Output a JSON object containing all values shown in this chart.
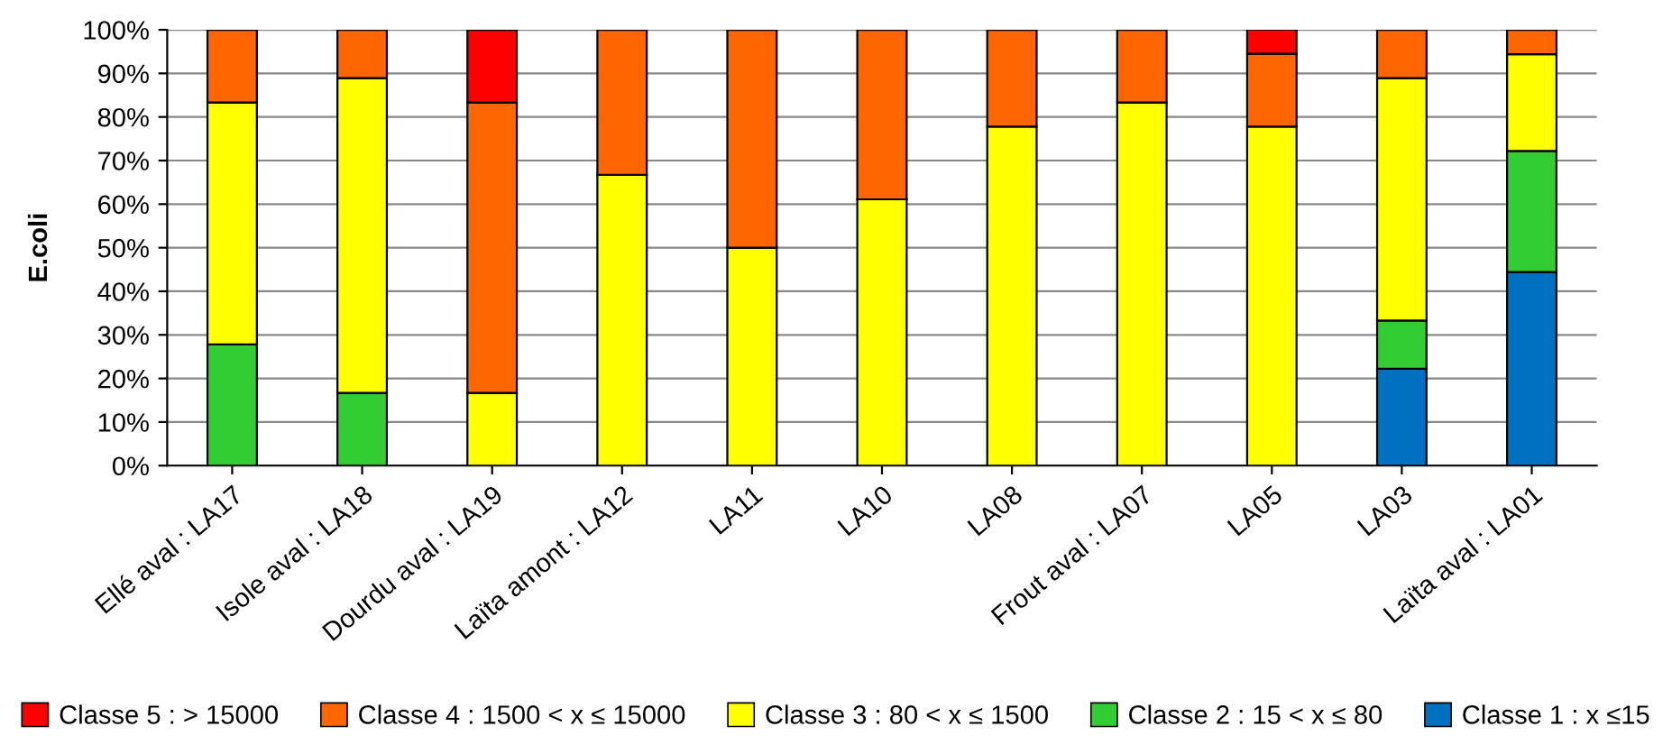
{
  "chart_data": {
    "type": "bar",
    "stacked": true,
    "ylabel": "E.coli",
    "categories": [
      "Ellé aval : LA17",
      "Isole aval : LA18",
      "Dourdu aval : LA19",
      "Laïta amont : LA12",
      "LA11",
      "LA10",
      "LA08",
      "Frout aval : LA07",
      "LA05",
      "LA03",
      "Laïta aval : LA01"
    ],
    "series": [
      {
        "name": "Classe 1 : x ≤15",
        "color": "#0070c0",
        "values": [
          0,
          0,
          0,
          0,
          0,
          0,
          0,
          0,
          0,
          22.2,
          44.4
        ]
      },
      {
        "name": "Classe 2 : 15 < x ≤ 80",
        "color": "#33cc33",
        "values": [
          27.8,
          16.7,
          0,
          0,
          0,
          0,
          0,
          0,
          0,
          11.1,
          27.8
        ]
      },
      {
        "name": "Classe 3 : 80 < x ≤ 1500",
        "color": "#ffff00",
        "values": [
          55.5,
          72.2,
          16.7,
          66.7,
          50,
          61.1,
          77.8,
          83.3,
          77.8,
          55.6,
          22.2
        ]
      },
      {
        "name": "Classe 4 : 1500 < x ≤ 15000",
        "color": "#ff6600",
        "values": [
          16.7,
          11.1,
          66.6,
          33.3,
          50,
          38.9,
          22.2,
          16.7,
          16.7,
          11.1,
          5.6
        ]
      },
      {
        "name": "Classe 5 : > 15000",
        "color": "#ff0000",
        "values": [
          0,
          0,
          16.7,
          0,
          0,
          0,
          0,
          0,
          5.6,
          0,
          0
        ]
      }
    ],
    "ylim": [
      0,
      100
    ],
    "yticks": [
      {
        "value": 0,
        "label": "0%"
      },
      {
        "value": 10,
        "label": "10%"
      },
      {
        "value": 20,
        "label": "20%"
      },
      {
        "value": 30,
        "label": "30%"
      },
      {
        "value": 40,
        "label": "40%"
      },
      {
        "value": 50,
        "label": "50%"
      },
      {
        "value": 60,
        "label": "60%"
      },
      {
        "value": 70,
        "label": "70%"
      },
      {
        "value": 80,
        "label": "80%"
      },
      {
        "value": 90,
        "label": "90%"
      },
      {
        "value": 100,
        "label": "100%"
      }
    ],
    "grid": "y",
    "legend": "bottom"
  }
}
